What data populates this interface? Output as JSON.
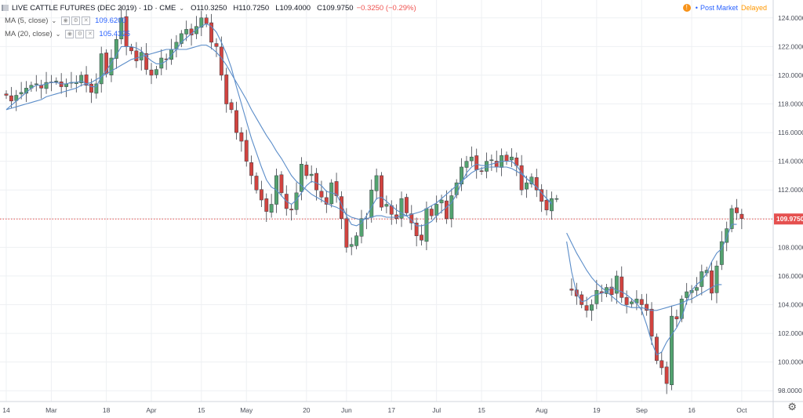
{
  "header": {
    "symbol": "LIVE CATTLE FUTURES (DEC 2019) · 1D · CME",
    "open": "O110.3250",
    "high": "H110.7250",
    "low": "L109.4000",
    "close": "C109.9750",
    "change": "−0.3250 (−0.29%)"
  },
  "indicators": [
    {
      "label": "MA (5, close)",
      "value": "109.6200",
      "color": "#2962ff"
    },
    {
      "label": "MA (20, close)",
      "value": "105.4325",
      "color": "#2962ff"
    }
  ],
  "status": {
    "alert_icon": "!",
    "post_market": "Post Market",
    "delayed": "Delayed"
  },
  "last_price_label": "109.9750",
  "colors": {
    "up": "#53a36f",
    "down": "#d2433f",
    "ma": "#5b8dc9",
    "last_line": "#e5504f"
  },
  "chart_data": {
    "type": "candlestick",
    "title": "LIVE CATTLE FUTURES (DEC 2019) · 1D · CME",
    "ylim": [
      97,
      125
    ],
    "y_ticks": [
      "98.0000",
      "100.0000",
      "102.0000",
      "104.0000",
      "106.0000",
      "108.0000",
      "110.0000",
      "112.0000",
      "114.0000",
      "116.0000",
      "118.0000",
      "120.0000",
      "122.0000",
      "124.0000"
    ],
    "x_ticks": [
      {
        "label": "14",
        "index": 0
      },
      {
        "label": "Mar",
        "index": 9
      },
      {
        "label": "18",
        "index": 20
      },
      {
        "label": "Apr",
        "index": 29
      },
      {
        "label": "15",
        "index": 39
      },
      {
        "label": "May",
        "index": 48
      },
      {
        "label": "20",
        "index": 60
      },
      {
        "label": "Jun",
        "index": 68
      },
      {
        "label": "17",
        "index": 77
      },
      {
        "label": "Jul",
        "index": 86
      },
      {
        "label": "15",
        "index": 95
      },
      {
        "label": "Aug",
        "index": 107
      },
      {
        "label": "19",
        "index": 118
      },
      {
        "label": "Sep",
        "index": 127
      },
      {
        "label": "16",
        "index": 137
      },
      {
        "label": "Oct",
        "index": 147
      }
    ],
    "last_price": 109.975,
    "closes": [
      118.6,
      118.2,
      118.6,
      118.8,
      119.1,
      119.3,
      119.4,
      119.1,
      119.5,
      119.5,
      119.6,
      119.2,
      119.4,
      119.5,
      119.5,
      120.0,
      119.3,
      118.8,
      119.4,
      121.5,
      120.1,
      121.2,
      122.5,
      124.0,
      122.0,
      121.7,
      121.0,
      121.6,
      120.4,
      120.0,
      120.4,
      121.2,
      121.1,
      121.8,
      122.3,
      122.9,
      123.2,
      122.8,
      123.4,
      124.0,
      123.6,
      122.3,
      122.0,
      120.0,
      118.0,
      117.6,
      116.0,
      115.4,
      114.0,
      113.0,
      112.0,
      111.3,
      110.5,
      111.0,
      113.0,
      111.8,
      110.7,
      110.6,
      111.8,
      113.8,
      113.0,
      113.1,
      112.0,
      111.5,
      111.0,
      112.5,
      111.6,
      110.0,
      108.0,
      108.2,
      108.8,
      110.0,
      110.0,
      112.0,
      113.0,
      110.8,
      111.0,
      110.3,
      110.0,
      111.4,
      110.4,
      109.7,
      108.8,
      108.5,
      110.7,
      110.2,
      111.0,
      111.3,
      110.0,
      111.6,
      112.5,
      113.6,
      114.0,
      114.3,
      113.4,
      113.3,
      114.0,
      114.1,
      113.6,
      114.4,
      114.0,
      114.3,
      113.7,
      112.0,
      112.5,
      112.9,
      112.0,
      111.2,
      110.6,
      111.4,
      111.4,
      null,
      null,
      105.0,
      104.6,
      104.0,
      103.6,
      104.0,
      105.0,
      104.8,
      105.2,
      104.7,
      106.0,
      104.5,
      104.0,
      104.2,
      104.4,
      104.0,
      103.6,
      101.8,
      100.1,
      99.6,
      98.5,
      103.2,
      103.0,
      104.4,
      104.9,
      105.0,
      105.2,
      106.3,
      106.4,
      104.8,
      106.7,
      108.4,
      109.3,
      110.7,
      110.4,
      110.0
    ],
    "ma5": [
      117.6,
      117.9,
      118.2,
      118.5,
      118.8,
      119.1,
      119.3,
      119.3,
      119.4,
      119.5,
      119.5,
      119.4,
      119.4,
      119.5,
      119.5,
      119.6,
      119.4,
      119.2,
      119.2,
      119.9,
      120.3,
      120.9,
      121.4,
      122.0,
      122.0,
      122.0,
      121.9,
      121.7,
      121.3,
      121.0,
      120.8,
      120.8,
      121.0,
      121.4,
      121.8,
      122.3,
      122.6,
      122.9,
      123.2,
      123.4,
      123.6,
      123.4,
      123.0,
      122.3,
      121.5,
      120.5,
      119.2,
      118.0,
      116.8,
      115.6,
      114.6,
      113.6,
      112.7,
      112.2,
      112.0,
      111.6,
      111.2,
      111.0,
      111.3,
      111.8,
      112.3,
      112.6,
      112.5,
      112.3,
      111.9,
      111.8,
      111.7,
      111.0,
      110.2,
      109.6,
      109.5,
      109.7,
      110.2,
      110.8,
      111.4,
      111.5,
      111.2,
      110.9,
      110.6,
      110.4,
      110.2,
      109.9,
      109.5,
      109.5,
      109.6,
      109.8,
      110.2,
      110.5,
      110.8,
      111.1,
      111.7,
      112.5,
      113.2,
      113.6,
      113.8,
      113.7,
      113.7,
      113.8,
      113.9,
      114.0,
      114.0,
      114.0,
      113.7,
      113.2,
      112.8,
      112.5,
      112.2,
      111.8,
      111.4,
      111.1,
      null,
      null,
      108.4,
      106.3,
      104.8,
      104.2,
      104.3,
      104.6,
      104.7,
      104.8,
      104.9,
      105.2,
      105.0,
      104.9,
      104.7,
      104.4,
      104.1,
      103.6,
      102.6,
      101.4,
      100.5,
      100.7,
      101.4,
      101.9,
      102.4,
      103.1,
      104.2,
      105.0,
      105.4,
      105.7,
      106.2,
      107.0,
      107.6,
      107.9,
      108.7,
      109.6,
      109.6
    ],
    "ma20": [
      117.6,
      117.7,
      117.8,
      117.9,
      118.0,
      118.1,
      118.2,
      118.3,
      118.5,
      118.6,
      118.7,
      118.8,
      118.9,
      119.0,
      119.1,
      119.3,
      119.4,
      119.5,
      119.7,
      119.9,
      120.1,
      120.3,
      120.5,
      120.7,
      120.9,
      121.1,
      121.2,
      121.3,
      121.4,
      121.5,
      121.6,
      121.7,
      121.8,
      121.8,
      121.8,
      121.8,
      121.8,
      121.9,
      122.0,
      122.1,
      122.1,
      121.9,
      121.6,
      121.2,
      120.7,
      120.1,
      119.5,
      118.9,
      118.3,
      117.6,
      117.0,
      116.4,
      115.8,
      115.3,
      114.7,
      114.2,
      113.6,
      113.0,
      112.6,
      112.3,
      112.0,
      111.7,
      111.5,
      111.3,
      111.1,
      110.9,
      110.8,
      110.6,
      110.3,
      110.1,
      110.0,
      109.9,
      110.0,
      110.1,
      110.2,
      110.2,
      110.1,
      110.1,
      110.1,
      110.2,
      110.2,
      110.3,
      110.4,
      110.5,
      110.7,
      110.9,
      111.1,
      111.4,
      111.7,
      112.0,
      112.3,
      112.6,
      112.9,
      113.2,
      113.4,
      113.5,
      113.6,
      113.6,
      113.6,
      113.6,
      113.6,
      113.5,
      113.3,
      113.1,
      112.8,
      112.5,
      112.2,
      111.8,
      111.4,
      111.0,
      null,
      null,
      109.0,
      108.3,
      107.6,
      107.0,
      106.4,
      105.9,
      105.5,
      105.2,
      104.9,
      104.6,
      104.3,
      104.0,
      103.9,
      103.8,
      103.8,
      103.8,
      103.7,
      103.6,
      103.6,
      103.7,
      103.8,
      103.9,
      104.0,
      104.1,
      104.3,
      104.4,
      104.6,
      104.8,
      105.0,
      105.2,
      105.4,
      105.4
    ]
  }
}
